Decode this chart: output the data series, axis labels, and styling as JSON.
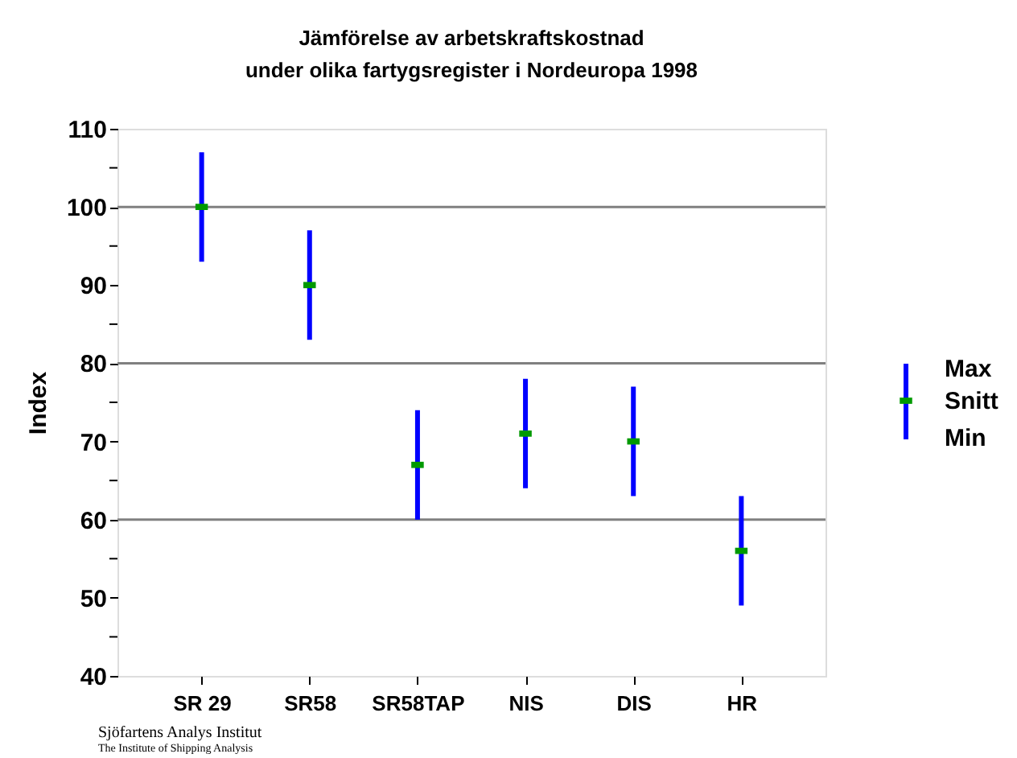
{
  "chart_data": {
    "type": "scatter",
    "title": "Jämförelse av arbetskraftskostnad\nunder olika fartygsregister i Nordeuropa 1998",
    "ylabel": "Index",
    "categories": [
      "SR 29",
      "SR58",
      "SR58TAP",
      "NIS",
      "DIS",
      "HR"
    ],
    "series": [
      {
        "name": "Snitt",
        "color": "#009900",
        "values": [
          100,
          90,
          67,
          71,
          70,
          56
        ],
        "errors": [
          [
            93,
            107
          ],
          [
            83,
            97
          ],
          [
            60,
            74
          ],
          [
            64,
            78
          ],
          [
            63,
            77
          ],
          [
            49,
            63
          ]
        ]
      }
    ],
    "ylim": [
      40,
      110
    ],
    "yticks": [
      40,
      {
        "value": 45,
        "label": null
      },
      50,
      {
        "value": 55,
        "label": null
      },
      60,
      {
        "value": 65,
        "label": null
      },
      70,
      {
        "value": 75,
        "label": null
      },
      80,
      {
        "value": 85,
        "label": null
      },
      90,
      {
        "value": 95,
        "label": null
      },
      100,
      {
        "value": 105,
        "label": null
      },
      110
    ],
    "ref_lines": [
      {
        "axis": "y",
        "value": 60,
        "color": "#808080"
      },
      {
        "axis": "y",
        "value": 80,
        "color": "#808080"
      },
      {
        "axis": "y",
        "value": 100,
        "color": "#808080"
      }
    ],
    "grid": false,
    "legend": "right",
    "annotations": [
      "Max",
      "Min",
      "Sjöfartens Analys Institut",
      "The Institute of Shipping Analysis"
    ]
  }
}
